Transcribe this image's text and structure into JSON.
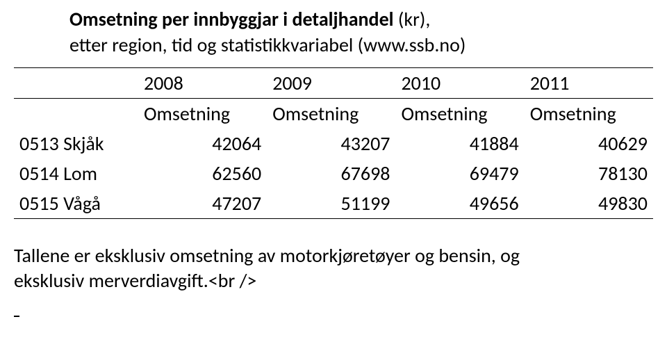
{
  "heading": {
    "title_bold": "Omsetning per innbyggjar i detaljhandel",
    "title_rest": "(kr),",
    "subtitle": "etter region, tid  og statistikkvariabel (www.ssb.no)"
  },
  "table": {
    "years": [
      "2008",
      "2009",
      "2010",
      "2011"
    ],
    "sublabel": "Omsetning",
    "rows": [
      {
        "region": "0513 Skjåk",
        "values": [
          "42064",
          "43207",
          "41884",
          "40629"
        ]
      },
      {
        "region": "0514 Lom",
        "values": [
          "62560",
          "67698",
          "69479",
          "78130"
        ]
      },
      {
        "region": "0515 Vågå",
        "values": [
          "47207",
          "51199",
          "49656",
          "49830"
        ]
      }
    ]
  },
  "note": {
    "line1": "Tallene er eksklusiv omsetning av motorkjøretøyer og bensin, og",
    "line2": "eksklusiv merverdiavgift.<br />"
  },
  "styling": {
    "font_family": "Calibri, Arial, sans-serif",
    "title_fontsize": 28,
    "table_fontsize": 28,
    "note_fontsize": 28,
    "text_color": "#000000",
    "background_color": "#ffffff",
    "border_color": "#000000"
  }
}
